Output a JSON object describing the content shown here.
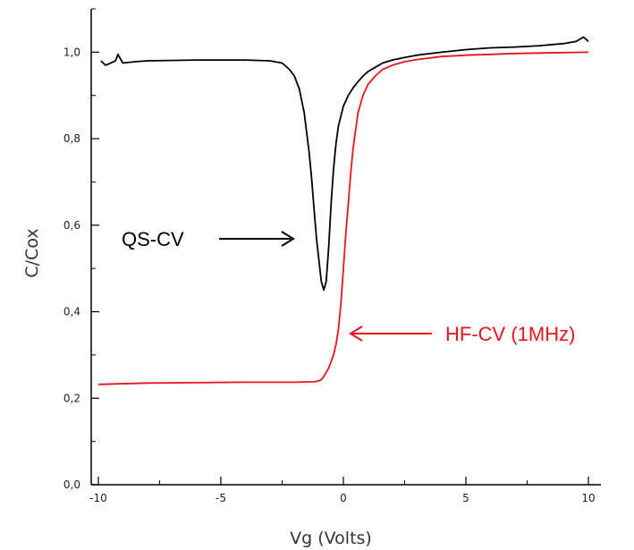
{
  "chart_data": {
    "type": "line",
    "title": "",
    "xlabel": "Vg (Volts)",
    "ylabel": "C/Cox",
    "xlim": [
      -10,
      10
    ],
    "ylim": [
      0,
      1.1
    ],
    "xticks": [
      {
        "value": -10,
        "label": "-10"
      },
      {
        "value": -5,
        "label": "-5"
      },
      {
        "value": 0,
        "label": "0"
      },
      {
        "value": 5,
        "label": "5"
      },
      {
        "value": 10,
        "label": "10"
      }
    ],
    "yticks": [
      {
        "value": 0.0,
        "label": "0,0"
      },
      {
        "value": 0.2,
        "label": "0,2"
      },
      {
        "value": 0.4,
        "label": "0,4"
      },
      {
        "value": 0.6,
        "label": "0,6"
      },
      {
        "value": 0.8,
        "label": "0,8"
      },
      {
        "value": 1.0,
        "label": "1,0"
      }
    ],
    "grid": false,
    "series": [
      {
        "color": "#000000",
        "x": [
          -9.9,
          -9.7,
          -9.5,
          -9.3,
          -9.2,
          -9.0,
          -8.5,
          -8.0,
          -6.0,
          -4.0,
          -3.0,
          -2.5,
          -2.2,
          -2.0,
          -1.8,
          -1.6,
          -1.4,
          -1.3,
          -1.2,
          -1.1,
          -1.0,
          -0.9,
          -0.8,
          -0.7,
          -0.6,
          -0.5,
          -0.4,
          -0.3,
          -0.2,
          0.0,
          0.2,
          0.4,
          0.6,
          0.8,
          1.0,
          1.3,
          1.6,
          2.0,
          2.5,
          3.0,
          4.0,
          5.0,
          6.0,
          7.0,
          8.0,
          9.0,
          9.5,
          9.8,
          10.0
        ],
        "y": [
          0.98,
          0.97,
          0.975,
          0.98,
          0.995,
          0.975,
          0.978,
          0.98,
          0.982,
          0.982,
          0.98,
          0.975,
          0.96,
          0.945,
          0.915,
          0.86,
          0.77,
          0.71,
          0.64,
          0.57,
          0.52,
          0.47,
          0.45,
          0.47,
          0.55,
          0.65,
          0.73,
          0.79,
          0.83,
          0.875,
          0.9,
          0.918,
          0.932,
          0.945,
          0.955,
          0.965,
          0.975,
          0.982,
          0.988,
          0.993,
          1.0,
          1.006,
          1.01,
          1.012,
          1.015,
          1.02,
          1.025,
          1.035,
          1.025
        ]
      },
      {
        "color": "#e8141c",
        "x": [
          -10,
          -8.0,
          -6.0,
          -4.0,
          -2.0,
          -1.2,
          -1.0,
          -0.9,
          -0.8,
          -0.7,
          -0.6,
          -0.5,
          -0.4,
          -0.3,
          -0.2,
          -0.1,
          0.0,
          0.1,
          0.2,
          0.3,
          0.4,
          0.5,
          0.6,
          0.8,
          1.0,
          1.3,
          1.6,
          2.0,
          2.5,
          3.0,
          4.0,
          5.0,
          6.0,
          7.0,
          8.0,
          9.0,
          10.0
        ],
        "y": [
          0.232,
          0.235,
          0.236,
          0.237,
          0.237,
          0.238,
          0.24,
          0.243,
          0.25,
          0.26,
          0.27,
          0.285,
          0.3,
          0.325,
          0.36,
          0.42,
          0.5,
          0.58,
          0.65,
          0.72,
          0.78,
          0.82,
          0.86,
          0.9,
          0.925,
          0.945,
          0.96,
          0.97,
          0.978,
          0.983,
          0.99,
          0.993,
          0.995,
          0.997,
          0.998,
          0.999,
          1.0
        ]
      }
    ],
    "annotations": [
      {
        "text": "QS-CV",
        "color": "#000000",
        "arrow": "right"
      },
      {
        "text": "HF-CV (1MHz)",
        "color": "#e8141c",
        "arrow": "left"
      }
    ]
  }
}
